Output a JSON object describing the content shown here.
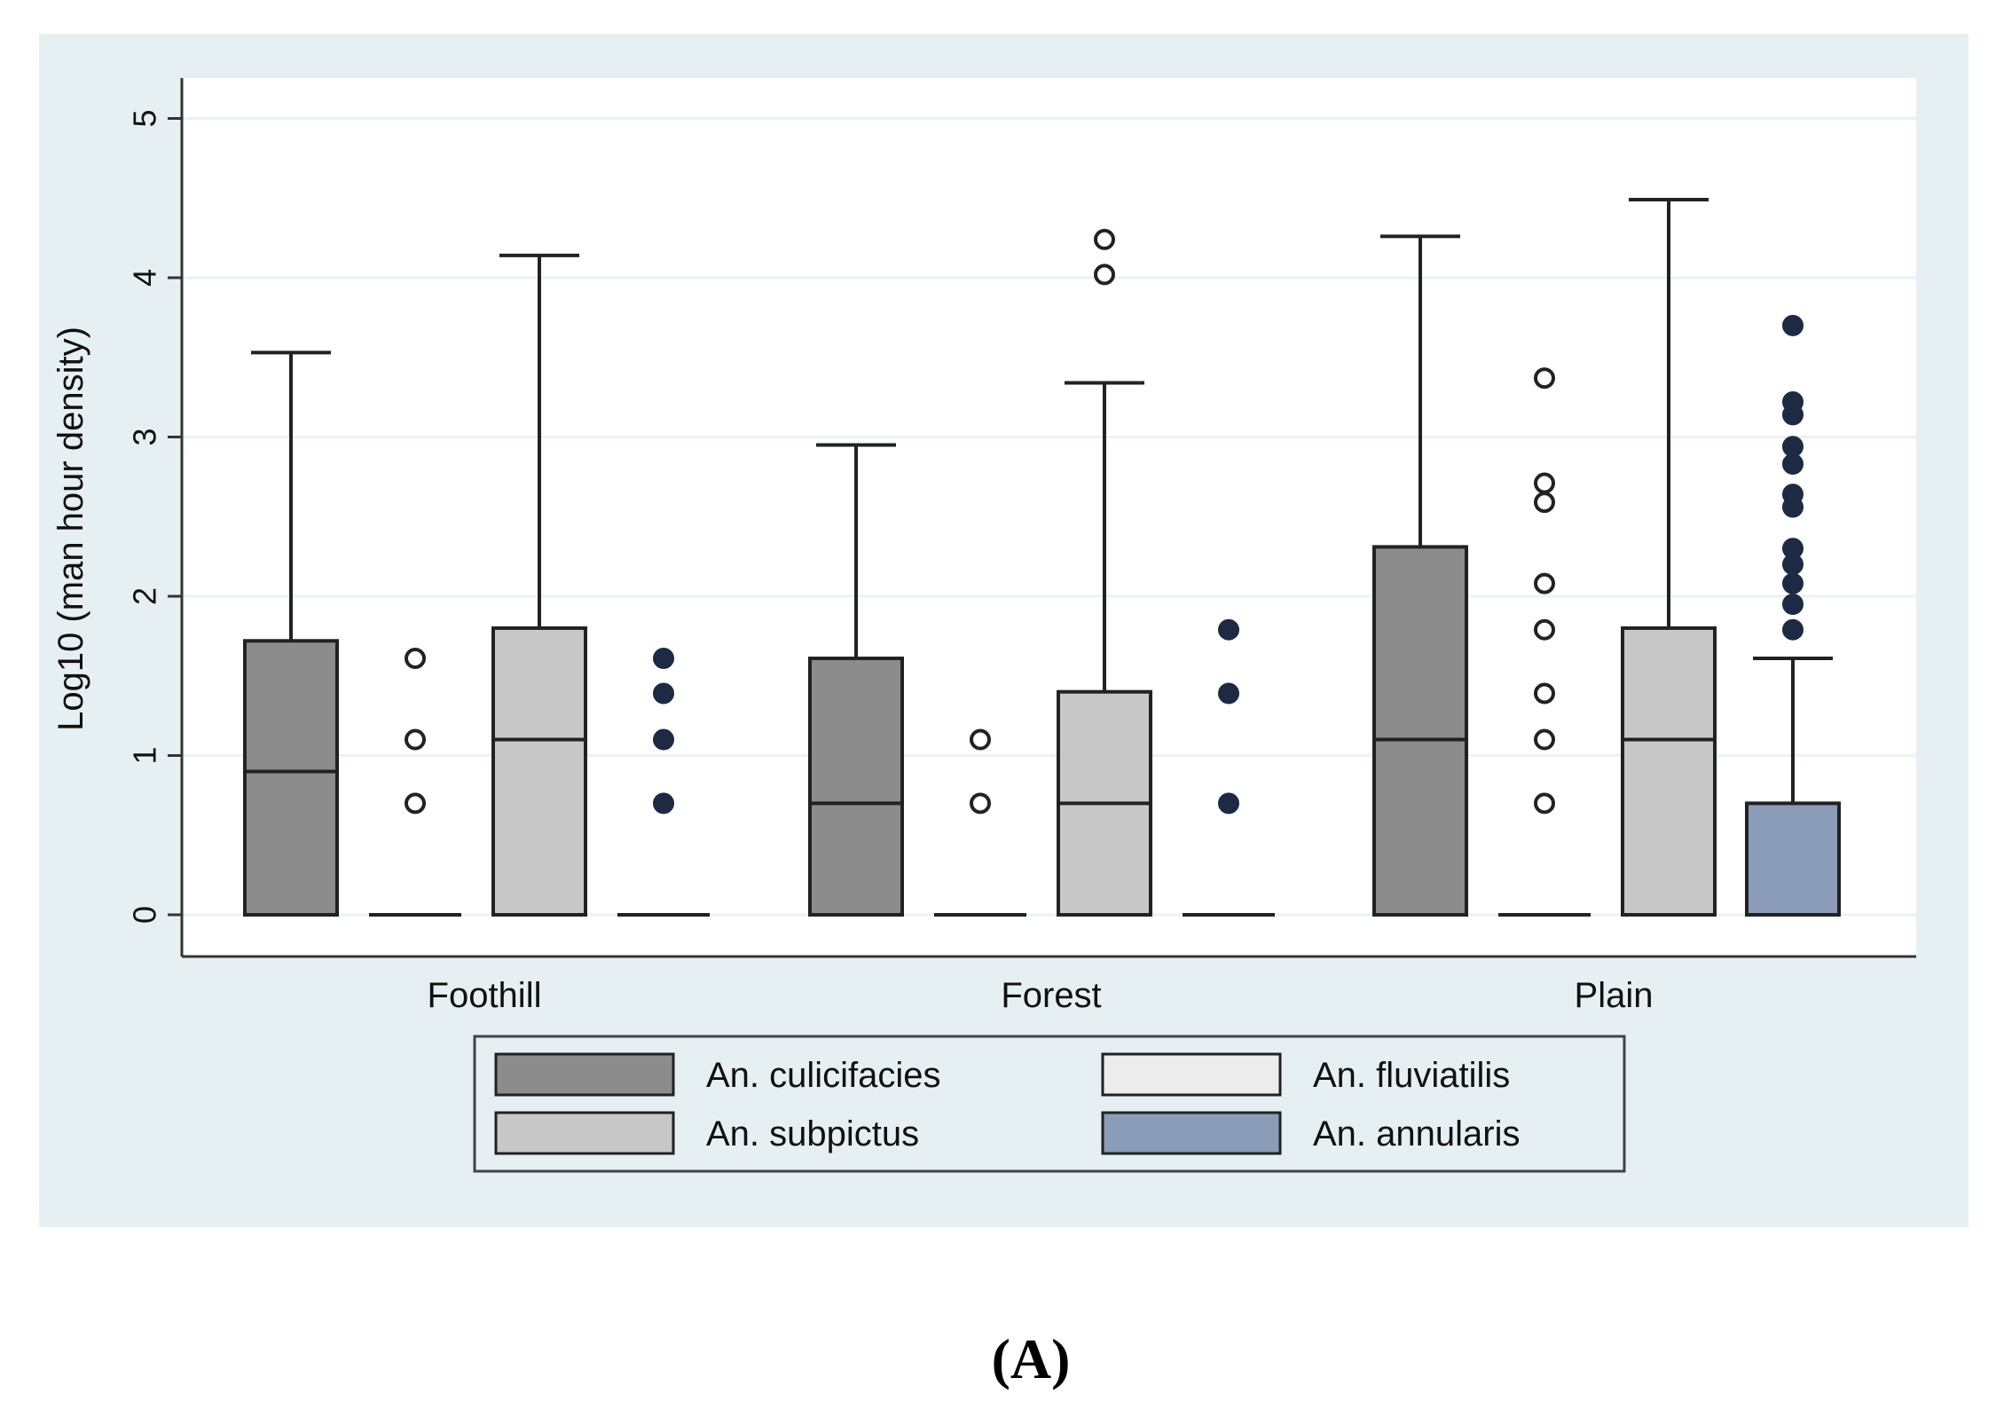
{
  "chart_data": {
    "type": "boxplot",
    "title": "",
    "xlabel": "",
    "ylabel": "Log10 (man hour density)",
    "ylim": [
      -0.25,
      5.25
    ],
    "yticks": [
      "0",
      "1",
      "2",
      "3",
      "4",
      "5"
    ],
    "grid": true,
    "legend_position": "bottom",
    "panel_label": "(A)",
    "colors": {
      "background": "#e6eff2",
      "plot_background": "#ffffff",
      "grid": "#eaf2f5",
      "axis": "#333333"
    },
    "categories": [
      "Foothill",
      "Forest",
      "Plain"
    ],
    "series": [
      {
        "name": "An. culicifacies",
        "color": "#8c8c8c",
        "outlier_style": "hollow",
        "boxes": [
          {
            "q1": 0,
            "median": 0.9,
            "q3": 1.72,
            "whisker_low": 0,
            "whisker_high": 3.53,
            "outliers": []
          },
          {
            "q1": 0,
            "median": 0.7,
            "q3": 1.61,
            "whisker_low": 0,
            "whisker_high": 2.95,
            "outliers": []
          },
          {
            "q1": 0,
            "median": 1.1,
            "q3": 2.31,
            "whisker_low": 0,
            "whisker_high": 4.26,
            "outliers": []
          }
        ]
      },
      {
        "name": "An. fluviatilis",
        "color": "#ececec",
        "outlier_style": "hollow",
        "boxes": [
          {
            "q1": 0,
            "median": 0,
            "q3": 0,
            "whisker_low": 0,
            "whisker_high": 0,
            "outliers": [
              0.7,
              1.1,
              1.61
            ]
          },
          {
            "q1": 0,
            "median": 0,
            "q3": 0,
            "whisker_low": 0,
            "whisker_high": 0,
            "outliers": [
              0.7,
              1.1
            ]
          },
          {
            "q1": 0,
            "median": 0,
            "q3": 0,
            "whisker_low": 0,
            "whisker_high": 0,
            "outliers": [
              0.7,
              1.1,
              1.39,
              1.79,
              2.08,
              2.59,
              2.71,
              3.37
            ]
          }
        ]
      },
      {
        "name": "An. subpictus",
        "color": "#c8c8c8",
        "outlier_style": "hollow",
        "boxes": [
          {
            "q1": 0,
            "median": 1.1,
            "q3": 1.8,
            "whisker_low": 0,
            "whisker_high": 4.14,
            "outliers": []
          },
          {
            "q1": 0,
            "median": 0.7,
            "q3": 1.4,
            "whisker_low": 0,
            "whisker_high": 3.34,
            "outliers": [
              4.02,
              4.24
            ]
          },
          {
            "q1": 0,
            "median": 1.1,
            "q3": 1.8,
            "whisker_low": 0,
            "whisker_high": 4.49,
            "outliers": []
          }
        ]
      },
      {
        "name": "An. annularis",
        "color": "#8a9cb8",
        "outlier_style": "filled",
        "boxes": [
          {
            "q1": 0,
            "median": 0,
            "q3": 0,
            "whisker_low": 0,
            "whisker_high": 0,
            "outliers": [
              0.7,
              1.1,
              1.39,
              1.61
            ]
          },
          {
            "q1": 0,
            "median": 0,
            "q3": 0,
            "whisker_low": 0,
            "whisker_high": 0,
            "outliers": [
              0.7,
              1.39,
              1.79
            ]
          },
          {
            "q1": 0,
            "median": 0,
            "q3": 0.7,
            "whisker_low": 0,
            "whisker_high": 1.61,
            "outliers": [
              1.79,
              1.95,
              2.08,
              2.2,
              2.3,
              2.56,
              2.64,
              2.83,
              2.94,
              3.14,
              3.22,
              3.7
            ]
          }
        ]
      }
    ]
  }
}
